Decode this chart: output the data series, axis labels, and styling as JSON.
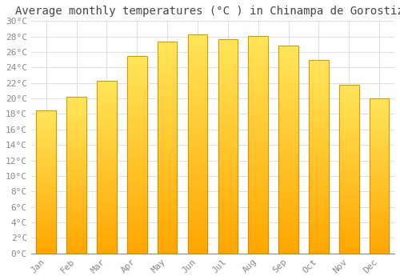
{
  "title": "Average monthly temperatures (°C ) in Chinampa de Gorostiza",
  "months": [
    "Jan",
    "Feb",
    "Mar",
    "Apr",
    "May",
    "Jun",
    "Jul",
    "Aug",
    "Sep",
    "Oct",
    "Nov",
    "Dec"
  ],
  "values": [
    18.5,
    20.2,
    22.3,
    25.5,
    27.3,
    28.3,
    27.7,
    28.1,
    26.8,
    25.0,
    21.8,
    20.0
  ],
  "bar_color_top": "#FFD966",
  "bar_color_bottom": "#FFA500",
  "bar_edge_color": "#CC8800",
  "background_color": "#FFFFFF",
  "plot_bg_color": "#FFFFFF",
  "grid_color": "#DDDDDD",
  "ylim": [
    0,
    30
  ],
  "ytick_step": 2,
  "title_fontsize": 10,
  "tick_fontsize": 8,
  "tick_label_color": "#888888",
  "title_color": "#444444",
  "font_family": "monospace"
}
